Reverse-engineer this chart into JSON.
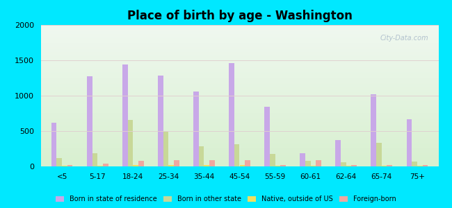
{
  "title": "Place of birth by age - Washington",
  "categories": [
    "<5",
    "5-17",
    "18-24",
    "25-34",
    "35-44",
    "45-54",
    "55-59",
    "60-61",
    "62-64",
    "65-74",
    "75+"
  ],
  "series": {
    "Born in state of residence": [
      620,
      1270,
      1440,
      1280,
      1060,
      1460,
      840,
      190,
      370,
      1020,
      670
    ],
    "Born in other state": [
      120,
      185,
      660,
      490,
      280,
      310,
      175,
      75,
      60,
      330,
      70
    ],
    "Native, outside of US": [
      10,
      12,
      20,
      15,
      15,
      15,
      10,
      10,
      10,
      10,
      10
    ],
    "Foreign-born": [
      18,
      40,
      80,
      85,
      90,
      90,
      15,
      85,
      15,
      20,
      20
    ]
  },
  "colors": {
    "Born in state of residence": "#c8a8e8",
    "Born in other state": "#c8d898",
    "Native, outside of US": "#f0e060",
    "Foreign-born": "#f0a8a0"
  },
  "ylim": [
    0,
    2000
  ],
  "yticks": [
    0,
    500,
    1000,
    1500,
    2000
  ],
  "background_outer": "#00e8ff",
  "bg_top": "#f0f8f0",
  "bg_bottom": "#d8f0d0",
  "bar_width": 0.15,
  "watermark": "City-Data.com"
}
